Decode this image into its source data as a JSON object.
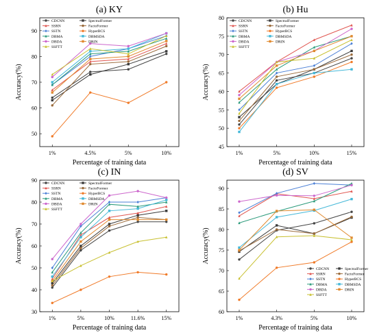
{
  "series_styles": [
    {
      "name": "CDCNN",
      "color": "#444444"
    },
    {
      "name": "SpectralFormer",
      "color": "#3a3a3a"
    },
    {
      "name": "SSRN",
      "color": "#e0554f"
    },
    {
      "name": "FactoFormer",
      "color": "#9a6a3a"
    },
    {
      "name": "SSTN",
      "color": "#4a7fd6"
    },
    {
      "name": "HyperBCS",
      "color": "#f07a28"
    },
    {
      "name": "DBMA",
      "color": "#2a9a7a"
    },
    {
      "name": "DBMSDA",
      "color": "#45b8d8"
    },
    {
      "name": "DBDA",
      "color": "#cc66cc"
    },
    {
      "name": "DRIN",
      "color": "#e08a30"
    },
    {
      "name": "SSFTT",
      "color": "#c8c030"
    }
  ],
  "chart_data": [
    {
      "type": "line",
      "title": "(a) KY",
      "xlabel": "Percentage of training data",
      "ylabel": "Accuracy(%)",
      "categories": [
        "1%",
        "4.5%",
        "5%",
        "10%"
      ],
      "ylim": [
        45,
        95
      ],
      "yticks": [
        50,
        60,
        70,
        80,
        90
      ],
      "legend_position": "top-left",
      "series": [
        {
          "name": "CDCNN",
          "values": [
            64,
            74,
            75,
            81
          ]
        },
        {
          "name": "SpectralFormer",
          "values": [
            63,
            73,
            77,
            82
          ]
        },
        {
          "name": "SSRN",
          "values": [
            67,
            78,
            79,
            85
          ]
        },
        {
          "name": "FactoFormer",
          "values": [
            61,
            77,
            78,
            84
          ]
        },
        {
          "name": "SSTN",
          "values": [
            69,
            80,
            83,
            88
          ]
        },
        {
          "name": "HyperBCS",
          "values": [
            49,
            66,
            62,
            70
          ]
        },
        {
          "name": "DBMA",
          "values": [
            69,
            81,
            82,
            87
          ]
        },
        {
          "name": "DBMSDA",
          "values": [
            70,
            82,
            83,
            89
          ]
        },
        {
          "name": "DBDA",
          "values": [
            72,
            85,
            84,
            89
          ]
        },
        {
          "name": "DRIN",
          "values": [
            66,
            79,
            80,
            86
          ]
        },
        {
          "name": "SSFTT",
          "values": [
            73,
            83,
            81,
            88
          ]
        }
      ]
    },
    {
      "type": "line",
      "title": "(b) Hu",
      "xlabel": "Percentage of training data",
      "ylabel": "Accuracy(%)",
      "categories": [
        "1%",
        "5%",
        "10%",
        "15%"
      ],
      "ylim": [
        45,
        80
      ],
      "yticks": [
        45,
        50,
        55,
        60,
        65,
        70,
        75,
        80
      ],
      "legend_position": "top-left",
      "series": [
        {
          "name": "CDCNN",
          "values": [
            51,
            63,
            65,
            69
          ]
        },
        {
          "name": "SpectralFormer",
          "values": [
            53,
            62,
            66,
            71
          ]
        },
        {
          "name": "SSRN",
          "values": [
            60,
            68,
            74,
            78
          ]
        },
        {
          "name": "FactoFormer",
          "values": [
            52,
            64,
            66,
            70
          ]
        },
        {
          "name": "SSTN",
          "values": [
            55,
            65,
            67,
            73
          ]
        },
        {
          "name": "HyperBCS",
          "values": [
            50,
            61,
            64,
            68
          ]
        },
        {
          "name": "DBMA",
          "values": [
            57,
            66,
            72,
            75
          ]
        },
        {
          "name": "DBMSDA",
          "values": [
            49,
            62,
            65,
            66
          ]
        },
        {
          "name": "DBDA",
          "values": [
            59,
            68,
            71,
            77
          ]
        },
        {
          "name": "DRIN",
          "values": [
            58,
            67,
            71,
            75
          ]
        },
        {
          "name": "SSFTT",
          "values": [
            54,
            68,
            69,
            74
          ]
        }
      ]
    },
    {
      "type": "line",
      "title": "(c) IN",
      "xlabel": "Percentage of training data",
      "ylabel": "Accuracy(%)",
      "categories": [
        "1%",
        "5%",
        "10%",
        "11.6%",
        "15%"
      ],
      "ylim": [
        30,
        90
      ],
      "yticks": [
        30,
        40,
        50,
        60,
        70,
        80,
        90
      ],
      "legend_position": "top-left",
      "series": [
        {
          "name": "CDCNN",
          "values": [
            41,
            58,
            67,
            71,
            71
          ]
        },
        {
          "name": "SpectralFormer",
          "values": [
            43,
            60,
            70,
            74,
            76
          ]
        },
        {
          "name": "SSRN",
          "values": [
            45,
            65,
            73,
            75,
            78
          ]
        },
        {
          "name": "FactoFormer",
          "values": [
            42,
            59,
            69,
            73,
            72
          ]
        },
        {
          "name": "SSTN",
          "values": [
            50,
            69,
            80,
            80,
            82
          ]
        },
        {
          "name": "HyperBCS",
          "values": [
            34,
            40,
            46,
            48,
            47
          ]
        },
        {
          "name": "DBMA",
          "values": [
            48,
            66,
            79,
            78,
            80
          ]
        },
        {
          "name": "DBMSDA",
          "values": [
            46,
            64,
            76,
            77,
            81
          ]
        },
        {
          "name": "DBDA",
          "values": [
            54,
            70,
            83,
            85,
            82
          ]
        },
        {
          "name": "DRIN",
          "values": [
            44,
            62,
            72,
            72,
            72
          ]
        },
        {
          "name": "SSFTT",
          "values": [
            44,
            51,
            57,
            62,
            64
          ]
        }
      ]
    },
    {
      "type": "line",
      "title": "(d) SV",
      "xlabel": "Percentage of training data",
      "ylabel": "Accuracy(%)",
      "categories": [
        "1%",
        "4.3%",
        "5%",
        "10%"
      ],
      "ylim": [
        60,
        92
      ],
      "yticks": [
        60,
        65,
        70,
        75,
        80,
        85,
        90
      ],
      "legend_position": "bottom-right",
      "series": [
        {
          "name": "CDCNN",
          "values": [
            72.7,
            79.8,
            81.5,
            84.3
          ]
        },
        {
          "name": "SpectralFormer",
          "values": [
            74.6,
            81,
            79,
            82.9
          ]
        },
        {
          "name": "SSRN",
          "values": [
            83.3,
            88.7,
            87.5,
            89.3
          ]
        },
        {
          "name": "FactoFormer",
          "values": [
            74.8,
            80,
            79,
            83.1
          ]
        },
        {
          "name": "SSTN",
          "values": [
            84.1,
            88.8,
            91.2,
            90.8
          ]
        },
        {
          "name": "HyperBCS",
          "values": [
            62.9,
            70.7,
            72,
            77
          ]
        },
        {
          "name": "DBMA",
          "values": [
            81.6,
            84.4,
            86.9,
            91.2
          ]
        },
        {
          "name": "DBMSDA",
          "values": [
            75.6,
            83,
            84.6,
            87.4
          ]
        },
        {
          "name": "DBDA",
          "values": [
            86.8,
            88.3,
            88.2,
            90.8
          ]
        },
        {
          "name": "DRIN",
          "values": [
            75,
            84.5,
            84.8,
            78
          ]
        },
        {
          "name": "SSFTT",
          "values": [
            68.1,
            78.2,
            78.5,
            77.5
          ]
        }
      ]
    }
  ]
}
